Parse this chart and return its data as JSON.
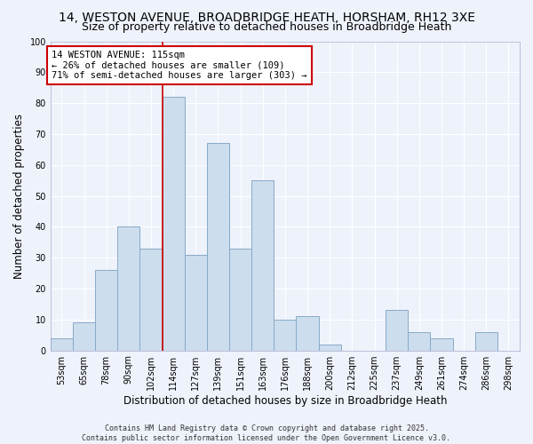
{
  "title1": "14, WESTON AVENUE, BROADBRIDGE HEATH, HORSHAM, RH12 3XE",
  "title2": "Size of property relative to detached houses in Broadbridge Heath",
  "xlabel": "Distribution of detached houses by size in Broadbridge Heath",
  "ylabel": "Number of detached properties",
  "bin_labels": [
    "53sqm",
    "65sqm",
    "78sqm",
    "90sqm",
    "102sqm",
    "114sqm",
    "127sqm",
    "139sqm",
    "151sqm",
    "163sqm",
    "176sqm",
    "188sqm",
    "200sqm",
    "212sqm",
    "225sqm",
    "237sqm",
    "249sqm",
    "261sqm",
    "274sqm",
    "286sqm",
    "298sqm"
  ],
  "bar_heights": [
    4,
    9,
    26,
    40,
    33,
    82,
    31,
    67,
    33,
    55,
    10,
    11,
    2,
    0,
    0,
    13,
    6,
    4,
    0,
    6,
    0
  ],
  "bar_color": "#ccdded",
  "bar_edge_color": "#88aac8",
  "vline_x_idx": 5,
  "vline_color": "#cc0000",
  "ylim": [
    0,
    100
  ],
  "annotation_text_line1": "14 WESTON AVENUE: 115sqm",
  "annotation_text_line2": "← 26% of detached houses are smaller (109)",
  "annotation_text_line3": "71% of semi-detached houses are larger (303) →",
  "footer1": "Contains HM Land Registry data © Crown copyright and database right 2025.",
  "footer2": "Contains public sector information licensed under the Open Government Licence v3.0.",
  "bg_color": "#eef2fb",
  "grid_color": "#ffffff",
  "title_fontsize": 10,
  "subtitle_fontsize": 9,
  "axis_label_fontsize": 8.5,
  "tick_fontsize": 7,
  "footer_fontsize": 6,
  "annot_fontsize": 7.5
}
